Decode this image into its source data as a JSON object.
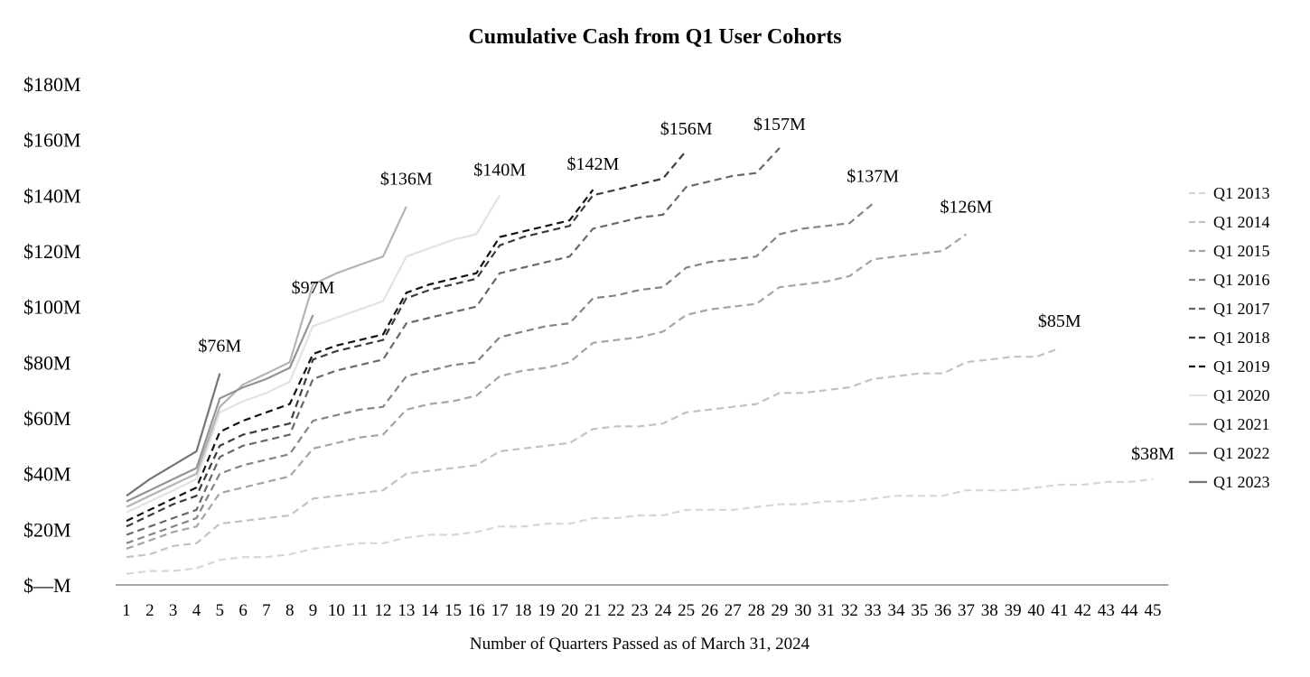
{
  "chart_data": {
    "type": "line",
    "title": "Cumulative Cash from Q1 User Cohorts",
    "xlabel": "Number of Quarters Passed as of March 31, 2024",
    "ylabel": "",
    "xlim": [
      1,
      45
    ],
    "ylim": [
      0,
      180
    ],
    "y_ticks": [
      0,
      20,
      40,
      60,
      80,
      100,
      120,
      140,
      160,
      180
    ],
    "y_tick_labels": [
      "$—M",
      "$20M",
      "$40M",
      "$60M",
      "$80M",
      "$100M",
      "$120M",
      "$140M",
      "$160M",
      "$180M"
    ],
    "x_ticks": [
      "1",
      "2",
      "3",
      "4",
      "5",
      "6",
      "7",
      "8",
      "9",
      "10",
      "11",
      "12",
      "13",
      "14",
      "15",
      "16",
      "17",
      "18",
      "19",
      "20",
      "21",
      "22",
      "23",
      "24",
      "25",
      "26",
      "27",
      "28",
      "29",
      "30",
      "31",
      "32",
      "33",
      "34",
      "35",
      "36",
      "37",
      "38",
      "39",
      "40",
      "41",
      "42",
      "43",
      "44",
      "45"
    ],
    "legend_position": "right",
    "grid": false,
    "series": [
      {
        "name": "Q1 2013",
        "style": "dashed",
        "color": "#d6d6d6",
        "end_label": "$38M",
        "values": [
          4,
          5,
          5,
          6,
          9,
          10,
          10,
          11,
          13,
          14,
          15,
          15,
          17,
          18,
          18,
          19,
          21,
          21,
          22,
          22,
          24,
          24,
          25,
          25,
          27,
          27,
          27,
          28,
          29,
          29,
          30,
          30,
          31,
          32,
          32,
          32,
          34,
          34,
          34,
          35,
          36,
          36,
          37,
          37,
          38
        ]
      },
      {
        "name": "Q1 2014",
        "style": "dashed",
        "color": "#c2c2c2",
        "end_label": "$85M",
        "values": [
          10,
          11,
          14,
          15,
          22,
          23,
          24,
          25,
          31,
          32,
          33,
          34,
          40,
          41,
          42,
          43,
          48,
          49,
          50,
          51,
          56,
          57,
          57,
          58,
          62,
          63,
          64,
          65,
          69,
          69,
          70,
          71,
          74,
          75,
          76,
          76,
          80,
          81,
          82,
          82,
          85
        ]
      },
      {
        "name": "Q1 2015",
        "style": "dashed",
        "color": "#a4a4a4",
        "end_label": "$126M",
        "values": [
          13,
          16,
          19,
          21,
          33,
          35,
          37,
          39,
          49,
          51,
          53,
          54,
          63,
          65,
          66,
          68,
          75,
          77,
          78,
          80,
          87,
          88,
          89,
          91,
          97,
          99,
          100,
          101,
          107,
          108,
          109,
          111,
          117,
          118,
          119,
          120,
          126
        ]
      },
      {
        "name": "Q1 2016",
        "style": "dashed",
        "color": "#848484",
        "end_label": "$137M",
        "values": [
          15,
          18,
          21,
          24,
          40,
          43,
          45,
          47,
          59,
          61,
          63,
          64,
          75,
          77,
          79,
          80,
          89,
          91,
          93,
          94,
          103,
          104,
          106,
          107,
          114,
          116,
          117,
          118,
          126,
          128,
          129,
          130,
          137
        ]
      },
      {
        "name": "Q1 2017",
        "style": "dashed",
        "color": "#686868",
        "end_label": "$157M",
        "values": [
          18,
          21,
          24,
          27,
          46,
          50,
          52,
          54,
          74,
          77,
          79,
          81,
          94,
          96,
          98,
          100,
          112,
          114,
          116,
          118,
          128,
          130,
          132,
          133,
          143,
          145,
          147,
          148,
          157
        ]
      },
      {
        "name": "Q1 2018",
        "style": "dashed",
        "color": "#3c3c3c",
        "end_label": "$156M",
        "values": [
          21,
          25,
          29,
          32,
          50,
          54,
          56,
          58,
          81,
          84,
          86,
          88,
          103,
          106,
          108,
          110,
          122,
          125,
          127,
          129,
          140,
          142,
          144,
          146,
          156
        ]
      },
      {
        "name": "Q1 2019",
        "style": "dashed",
        "color": "#111111",
        "end_label": "$142M",
        "values": [
          23,
          27,
          31,
          35,
          55,
          59,
          62,
          65,
          83,
          86,
          88,
          90,
          105,
          108,
          110,
          112,
          125,
          127,
          129,
          131,
          142
        ]
      },
      {
        "name": "Q1 2020",
        "style": "solid",
        "color": "#e2e2e2",
        "end_label": "$140M",
        "values": [
          26,
          30,
          34,
          38,
          62,
          66,
          69,
          73,
          93,
          96,
          99,
          102,
          118,
          121,
          124,
          126,
          140
        ]
      },
      {
        "name": "Q1 2021",
        "style": "solid",
        "color": "#b4b4b4",
        "end_label": "$136M",
        "values": [
          28,
          32,
          36,
          40,
          64,
          72,
          76,
          80,
          108,
          112,
          115,
          118,
          136
        ]
      },
      {
        "name": "Q1 2022",
        "style": "solid",
        "color": "#949494",
        "end_label": "$97M",
        "values": [
          30,
          34,
          38,
          42,
          67,
          71,
          74,
          78,
          97
        ]
      },
      {
        "name": "Q1 2023",
        "style": "solid",
        "color": "#767676",
        "end_label": "$76M",
        "values": [
          32,
          38,
          43,
          48,
          76
        ]
      }
    ]
  }
}
